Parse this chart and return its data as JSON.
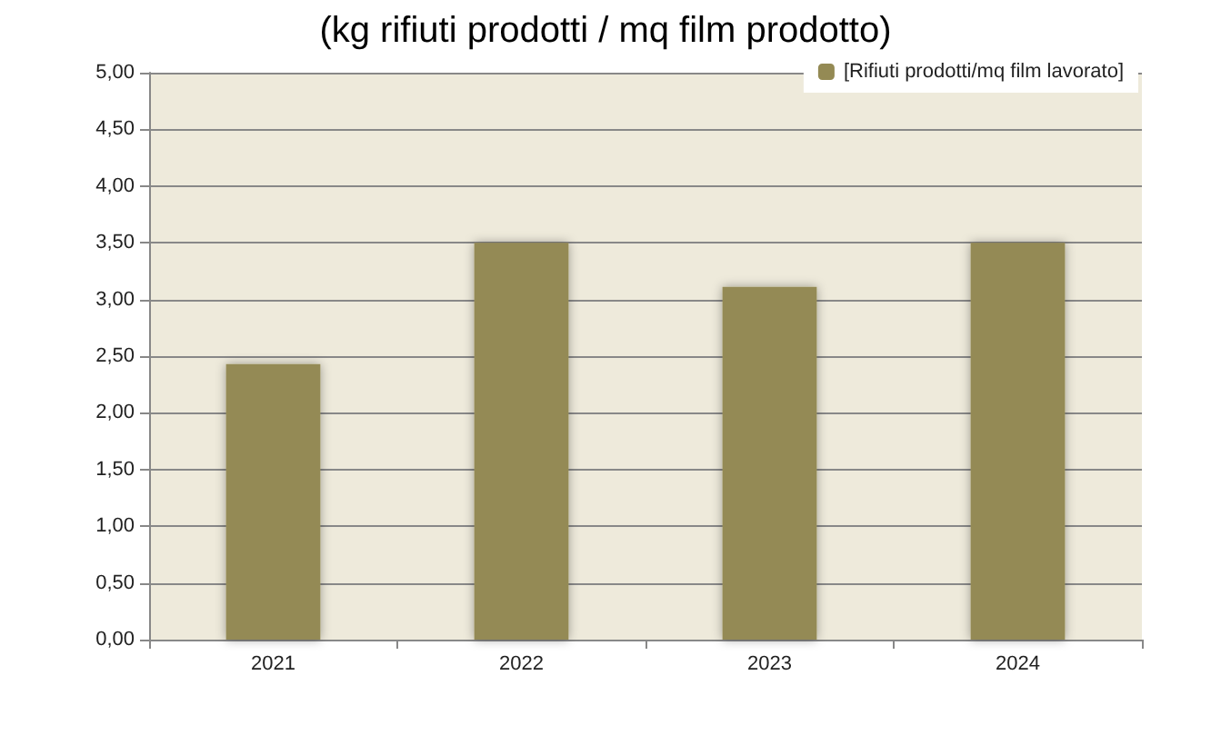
{
  "chart_data": {
    "type": "bar",
    "title": "(kg rifiuti prodotti / mq film prodotto)",
    "categories": [
      "2021",
      "2022",
      "2023",
      "2024"
    ],
    "series": [
      {
        "name": "[Rifiuti prodotti/mq film lavorato]",
        "color": "#948a54",
        "values": [
          2.43,
          3.5,
          3.11,
          3.5
        ]
      }
    ],
    "ylim": [
      0,
      5
    ],
    "yticks": [
      {
        "value": 0,
        "label": "0,00"
      },
      {
        "value": 0.5,
        "label": "0,50"
      },
      {
        "value": 1,
        "label": "1,00"
      },
      {
        "value": 1.5,
        "label": "1,50"
      },
      {
        "value": 2,
        "label": "2,00"
      },
      {
        "value": 2.5,
        "label": "2,50"
      },
      {
        "value": 3,
        "label": "3,00"
      },
      {
        "value": 3.5,
        "label": "3,50"
      },
      {
        "value": 4,
        "label": "4,00"
      },
      {
        "value": 4.5,
        "label": "4,50"
      },
      {
        "value": 5,
        "label": "5,00"
      }
    ],
    "grid": "y",
    "legend": "top right"
  }
}
